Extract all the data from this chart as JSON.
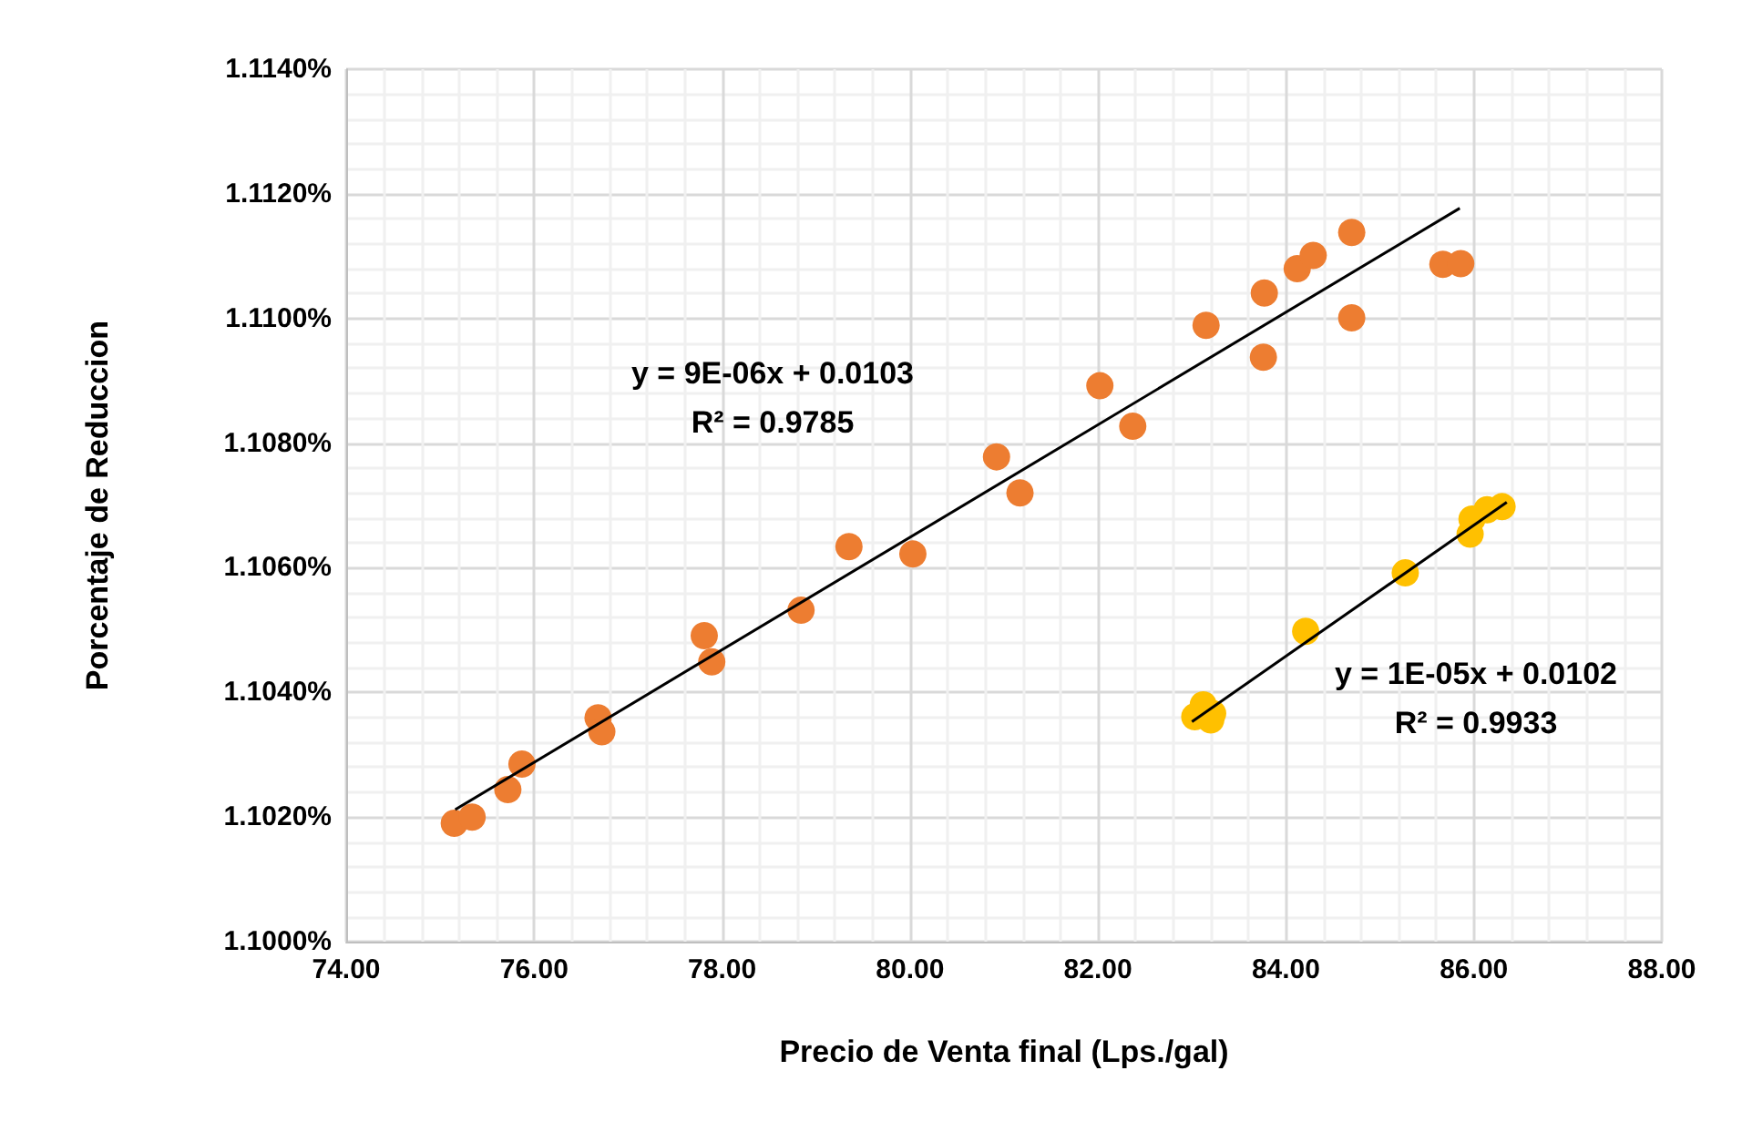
{
  "chart_data": {
    "type": "scatter",
    "xlabel": "Precio de Venta final (Lps./gal)",
    "ylabel": "Porcentaje de Reduccion",
    "xlim": [
      74,
      88
    ],
    "xticks": [
      {
        "value": 74,
        "label": "74.00"
      },
      {
        "value": 76,
        "label": "76.00"
      },
      {
        "value": 78,
        "label": "78.00"
      },
      {
        "value": 80,
        "label": "80.00"
      },
      {
        "value": 82,
        "label": "82.00"
      },
      {
        "value": 84,
        "label": "84.00"
      },
      {
        "value": 86,
        "label": "86.00"
      },
      {
        "value": 88,
        "label": "88.00"
      }
    ],
    "ylim": [
      1.1,
      1.114
    ],
    "yticks": [
      {
        "value": 1.1,
        "label": "1.1000%"
      },
      {
        "value": 1.102,
        "label": "1.1020%"
      },
      {
        "value": 1.104,
        "label": "1.1040%"
      },
      {
        "value": 1.106,
        "label": "1.1060%"
      },
      {
        "value": 1.108,
        "label": "1.1080%"
      },
      {
        "value": 1.11,
        "label": "1.1100%"
      },
      {
        "value": 1.112,
        "label": "1.1120%"
      },
      {
        "value": 1.114,
        "label": "1.1140%"
      }
    ],
    "grid": true,
    "marker": "circle",
    "series": [
      {
        "color": "#ed7d31",
        "x": [
          75.15,
          75.34,
          75.72,
          75.87,
          76.68,
          76.72,
          77.81,
          77.89,
          78.84,
          79.35,
          80.03,
          80.92,
          81.17,
          82.02,
          82.37,
          83.15,
          83.77,
          83.76,
          84.12,
          84.29,
          84.7,
          84.7,
          85.67,
          85.86
        ],
        "values": [
          1.1019,
          1.102,
          1.10244,
          1.10285,
          1.10359,
          1.10337,
          1.10491,
          1.10449,
          1.10532,
          1.10634,
          1.10622,
          1.10778,
          1.1072,
          1.10892,
          1.10827,
          1.10989,
          1.11041,
          1.10938,
          1.1108,
          1.11101,
          1.11138,
          1.11001,
          1.11087,
          1.11088
        ]
      },
      {
        "color": "#ffc000",
        "x": [
          83.03,
          83.12,
          83.2,
          83.22,
          84.21,
          85.27,
          85.96,
          85.98,
          86.14,
          86.3
        ],
        "values": [
          1.10361,
          1.1038,
          1.10356,
          1.10366,
          1.10498,
          1.10592,
          1.10654,
          1.10678,
          1.10693,
          1.10698
        ]
      },
      {
        "type": "line",
        "color": "#000000",
        "marker": "none",
        "x": [
          75.16,
          85.85
        ],
        "values": [
          1.10212,
          1.11177
        ]
      },
      {
        "type": "line",
        "color": "#000000",
        "marker": "none",
        "x": [
          83.0,
          86.35
        ],
        "values": [
          1.10353,
          1.10705
        ]
      }
    ],
    "annotations": [
      "y = 9E-06x + 0.0103",
      "R² = 0.9785",
      "y = 1E-05x + 0.0102",
      "R² = 0.9933"
    ]
  }
}
